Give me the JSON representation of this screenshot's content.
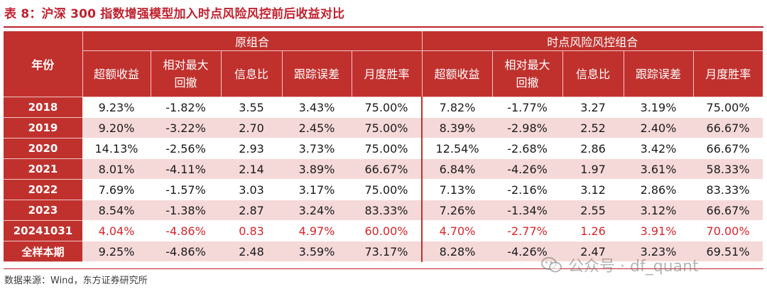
{
  "title": "表 8：沪深 300 指数增强模型加入时点风险风控前后收益对比",
  "header": {
    "year_col": "年份",
    "groups": [
      "原组合",
      "时点风险风控组合"
    ],
    "metrics": [
      "超额收益",
      "相对最大回撤",
      "信息比",
      "跟踪误差",
      "月度胜率"
    ]
  },
  "rows": [
    {
      "year": "2018",
      "values": [
        "9.23%",
        "-1.82%",
        "3.55",
        "3.43%",
        "75.00%",
        "7.82%",
        "-1.77%",
        "3.27",
        "3.19%",
        "75.00%"
      ]
    },
    {
      "year": "2019",
      "values": [
        "9.20%",
        "-3.22%",
        "2.70",
        "2.45%",
        "75.00%",
        "8.39%",
        "-2.98%",
        "2.52",
        "2.40%",
        "66.67%"
      ]
    },
    {
      "year": "2020",
      "values": [
        "14.13%",
        "-2.56%",
        "2.93",
        "3.73%",
        "75.00%",
        "12.54%",
        "-2.68%",
        "2.86",
        "3.42%",
        "66.67%"
      ]
    },
    {
      "year": "2021",
      "values": [
        "8.01%",
        "-4.11%",
        "2.14",
        "3.89%",
        "66.67%",
        "6.84%",
        "-4.26%",
        "1.97",
        "3.61%",
        "58.33%"
      ]
    },
    {
      "year": "2022",
      "values": [
        "7.69%",
        "-1.57%",
        "3.03",
        "3.17%",
        "75.00%",
        "7.13%",
        "-2.16%",
        "3.12",
        "2.86%",
        "83.33%"
      ]
    },
    {
      "year": "2023",
      "values": [
        "8.54%",
        "-1.38%",
        "2.87",
        "3.24%",
        "83.33%",
        "7.26%",
        "-1.34%",
        "2.55",
        "3.12%",
        "66.67%"
      ]
    },
    {
      "year": "20241031",
      "values": [
        "4.04%",
        "-4.86%",
        "0.83",
        "4.97%",
        "60.00%",
        "4.70%",
        "-2.77%",
        "1.26",
        "3.91%",
        "70.00%"
      ]
    },
    {
      "year": "全样本期",
      "values": [
        "9.25%",
        "-4.86%",
        "2.48",
        "3.59%",
        "73.17%",
        "8.28%",
        "-4.26%",
        "2.47",
        "3.23%",
        "69.51%"
      ]
    }
  ],
  "source": "数据来源：Wind，东方证券研究所",
  "watermark": "公众号 · df_quant",
  "colors": {
    "header_bg": "#c0312e",
    "title_red": "#c0212f",
    "stripe": "#f5d9d8",
    "highlight_text": "#d8252c"
  }
}
